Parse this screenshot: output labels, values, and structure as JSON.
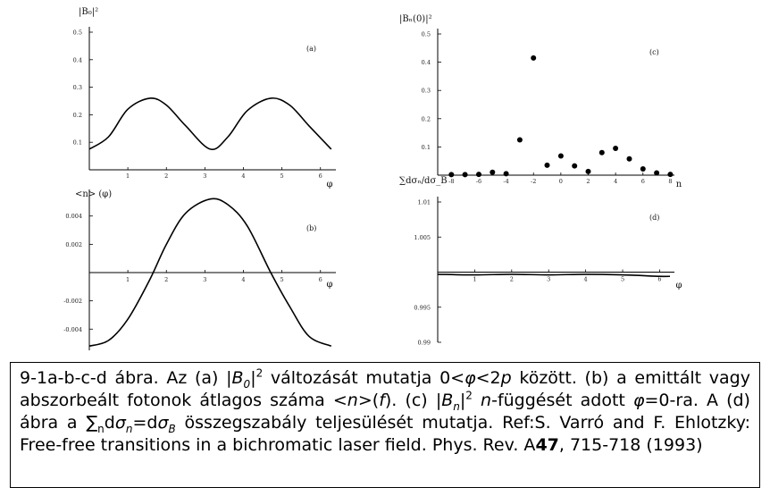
{
  "chart_data": [
    {
      "type": "line",
      "panel": "(a)",
      "ylabel": "|B₀|²",
      "xlabel": "φ",
      "xlim": [
        0,
        6.4
      ],
      "ylim": [
        0,
        0.5
      ],
      "xticks": [
        1,
        2,
        3,
        4,
        5,
        6
      ],
      "yticks": [
        0.1,
        0.2,
        0.3,
        0.4,
        0.5
      ],
      "ytick_labels": [
        "0.1",
        "0.2",
        "0.3",
        "0.4",
        "0.5"
      ],
      "x": [
        0,
        0.5,
        1.0,
        1.57,
        2.0,
        2.5,
        3.14,
        3.6,
        4.1,
        4.71,
        5.2,
        5.7,
        6.28
      ],
      "y": [
        0.075,
        0.12,
        0.22,
        0.26,
        0.235,
        0.16,
        0.075,
        0.12,
        0.215,
        0.26,
        0.235,
        0.16,
        0.075
      ]
    },
    {
      "type": "line",
      "panel": "(b)",
      "ylabel": "<n> (φ)",
      "xlabel": "φ",
      "xlim": [
        0,
        6.4
      ],
      "ylim": [
        -0.0055,
        0.0055
      ],
      "xticks": [
        1,
        2,
        3,
        4,
        5,
        6
      ],
      "yticks": [
        -0.004,
        -0.002,
        0.002,
        0.004
      ],
      "ytick_labels": [
        "-0.004",
        "-0.002",
        "0.002",
        "0.004"
      ],
      "x": [
        0,
        0.5,
        1.0,
        1.57,
        2.0,
        2.5,
        3.14,
        3.6,
        4.1,
        4.71,
        5.2,
        5.7,
        6.28
      ],
      "y": [
        -0.0052,
        -0.0048,
        -0.0033,
        -0.0005,
        0.002,
        0.0042,
        0.0052,
        0.0048,
        0.0033,
        0.0,
        -0.0024,
        -0.0045,
        -0.0052
      ]
    },
    {
      "type": "scatter",
      "panel": "(c)",
      "ylabel": "|Bₙ(0)|²",
      "xlabel": "n",
      "xlim": [
        -9,
        8.3
      ],
      "ylim": [
        0,
        0.5
      ],
      "xticks": [
        -8,
        -6,
        -4,
        -2,
        0,
        2,
        4,
        6,
        8
      ],
      "yticks": [
        0.1,
        0.2,
        0.3,
        0.4,
        0.5
      ],
      "ytick_labels": [
        "0.1",
        "0.2",
        "0.3",
        "0.4",
        "0.5"
      ],
      "x": [
        -8,
        -7,
        -6,
        -5,
        -4,
        -3,
        -2,
        -1,
        0,
        1,
        2,
        3,
        4,
        5,
        6,
        7,
        8
      ],
      "y": [
        0.002,
        0.002,
        0.003,
        0.01,
        0.005,
        0.125,
        0.415,
        0.035,
        0.068,
        0.033,
        0.013,
        0.08,
        0.095,
        0.058,
        0.022,
        0.008,
        0.003
      ]
    },
    {
      "type": "line",
      "panel": "(d)",
      "ylabel": "∑dσₙ/dσ_B",
      "xlabel": "φ",
      "xlim": [
        0,
        6.4
      ],
      "ylim": [
        0.99,
        1.01
      ],
      "xticks": [
        1,
        2,
        3,
        4,
        5,
        6
      ],
      "yticks": [
        0.99,
        0.995,
        1.005,
        1.01
      ],
      "ytick_labels": [
        "0.99",
        "0.995",
        "1.005",
        "1.01"
      ],
      "x": [
        0,
        1,
        2,
        3,
        4,
        5,
        6,
        6.28
      ],
      "y": [
        0.9997,
        0.9996,
        0.9997,
        0.9996,
        0.9997,
        0.9996,
        0.9994,
        0.9994
      ]
    }
  ],
  "caption": {
    "fig_id": "9-1a-b-c-d ábra.",
    "p1": " Az (a) |",
    "B0_var": "B",
    "B0_sub": "0",
    "p2": "|",
    "sq1": "2",
    "p3": " változását mutatja 0<",
    "phi1": "φ",
    "p4": "<2",
    "p_var": "p",
    "p5": " között. (b) a emittált vagy abszorbeált fotonok átlagos száma <",
    "n_var": "n",
    "p6": ">(",
    "f_var": "f",
    "p7": "). (c) |",
    "Bn_var": "B",
    "Bn_sub": "n",
    "p8": "|",
    "sq2": "2",
    "p9": " ",
    "n2_var": "n",
    "p10": "-függését adott ",
    "phi2": "φ",
    "p11": "=0-ra. A (d) ábra a ",
    "sigma_sum": "∑",
    "sub_n1": "n",
    "p12": "d",
    "sigma1": "σ",
    "sub_n2": "n",
    "p13": "=d",
    "sigma2": "σ",
    "sub_B": "B",
    "p14": " összegszabály teljesülését mutatja. Ref:S. Varró and F. Ehlotzky: Free-free transitions in a bichromatic laser field. Phys. Rev. A",
    "vol": "47",
    "p15": ", 715-718 (1993)"
  }
}
